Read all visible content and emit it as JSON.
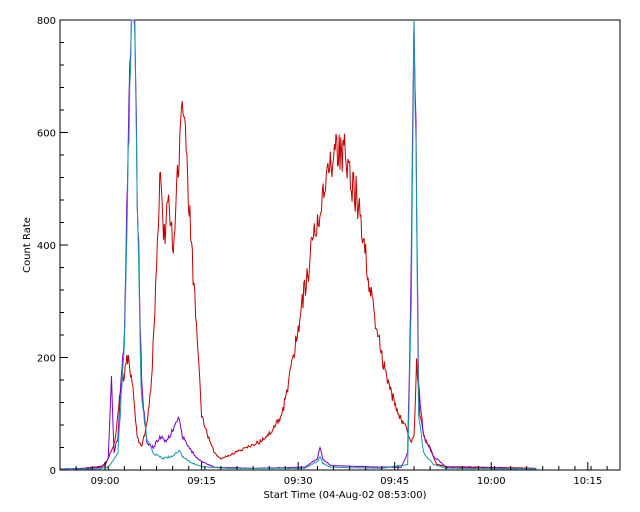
{
  "chart_data": {
    "type": "line",
    "title": "",
    "xlabel": "Start Time (04-Aug-02 08:53:00)",
    "ylabel": "Count Rate",
    "xlim_min": [
      0,
      87
    ],
    "ylim": [
      0,
      800
    ],
    "x_ticks": [
      {
        "t": 7,
        "label": "09:00"
      },
      {
        "t": 22,
        "label": "09:15"
      },
      {
        "t": 37,
        "label": "09:30"
      },
      {
        "t": 52,
        "label": "09:45"
      },
      {
        "t": 67,
        "label": "10:00"
      },
      {
        "t": 82,
        "label": "10:15"
      }
    ],
    "y_ticks": [
      0,
      200,
      400,
      600,
      800
    ],
    "grid": false,
    "series": [
      {
        "color": "#c00000",
        "points": [
          [
            4,
            4
          ],
          [
            5.5,
            5
          ],
          [
            7,
            8
          ],
          [
            8.5,
            50
          ],
          [
            9.5,
            150
          ],
          [
            10.5,
            200
          ],
          [
            11.2,
            160
          ],
          [
            12,
            60
          ],
          [
            12.6,
            40
          ],
          [
            13.5,
            80
          ],
          [
            14.2,
            150
          ],
          [
            15,
            350
          ],
          [
            15.5,
            510
          ],
          [
            16.2,
            420
          ],
          [
            17,
            480
          ],
          [
            17.6,
            380
          ],
          [
            18.5,
            560
          ],
          [
            19,
            630
          ],
          [
            19.6,
            560
          ],
          [
            20.3,
            420
          ],
          [
            21.2,
            250
          ],
          [
            22,
            100
          ],
          [
            23,
            60
          ],
          [
            24,
            30
          ],
          [
            25,
            20
          ],
          [
            27,
            30
          ],
          [
            29,
            40
          ],
          [
            31,
            50
          ],
          [
            33,
            70
          ],
          [
            34.5,
            100
          ],
          [
            35.5,
            150
          ],
          [
            36.5,
            220
          ],
          [
            37.5,
            290
          ],
          [
            38.5,
            350
          ],
          [
            39.5,
            420
          ],
          [
            40.5,
            470
          ],
          [
            41.5,
            520
          ],
          [
            42.5,
            540
          ],
          [
            43,
            580
          ],
          [
            43.5,
            550
          ],
          [
            44.2,
            590
          ],
          [
            45,
            520
          ],
          [
            46,
            490
          ],
          [
            47,
            420
          ],
          [
            48,
            340
          ],
          [
            49,
            270
          ],
          [
            50,
            200
          ],
          [
            51,
            150
          ],
          [
            52,
            120
          ],
          [
            53,
            90
          ],
          [
            54,
            70
          ],
          [
            54.5,
            50
          ],
          [
            55,
            60
          ],
          [
            55.4,
            190
          ],
          [
            55.9,
            100
          ],
          [
            56.5,
            60
          ],
          [
            57.5,
            40
          ],
          [
            58.5,
            10
          ],
          [
            60,
            6
          ],
          [
            65,
            5
          ],
          [
            70,
            4
          ],
          [
            74,
            3
          ]
        ]
      },
      {
        "color": "#7a00c8",
        "points": [
          [
            0,
            2
          ],
          [
            4,
            3
          ],
          [
            6.5,
            5
          ],
          [
            7.5,
            20
          ],
          [
            8,
            160
          ],
          [
            8.4,
            30
          ],
          [
            9,
            60
          ],
          [
            10,
            250
          ],
          [
            10.6,
            600
          ],
          [
            11.1,
            800
          ],
          [
            11.6,
            800
          ],
          [
            12,
            500
          ],
          [
            12.7,
            150
          ],
          [
            13.5,
            50
          ],
          [
            14.5,
            40
          ],
          [
            15.5,
            60
          ],
          [
            16.5,
            50
          ],
          [
            17.5,
            70
          ],
          [
            18.5,
            95
          ],
          [
            19,
            60
          ],
          [
            20,
            40
          ],
          [
            21,
            25
          ],
          [
            22,
            15
          ],
          [
            24,
            5
          ],
          [
            30,
            3
          ],
          [
            38,
            5
          ],
          [
            40,
            20
          ],
          [
            40.4,
            40
          ],
          [
            40.8,
            20
          ],
          [
            42,
            8
          ],
          [
            50,
            5
          ],
          [
            53,
            5
          ],
          [
            54,
            30
          ],
          [
            54.5,
            300
          ],
          [
            55,
            800
          ],
          [
            55.3,
            600
          ],
          [
            55.7,
            150
          ],
          [
            56.5,
            60
          ],
          [
            58,
            25
          ],
          [
            60,
            5
          ],
          [
            70,
            3
          ],
          [
            74,
            2
          ]
        ]
      },
      {
        "color": "#1a9aa8",
        "points": [
          [
            0,
            1
          ],
          [
            6,
            2
          ],
          [
            7.5,
            5
          ],
          [
            9,
            30
          ],
          [
            10,
            220
          ],
          [
            10.6,
            550
          ],
          [
            11.1,
            800
          ],
          [
            11.6,
            800
          ],
          [
            12,
            480
          ],
          [
            12.6,
            140
          ],
          [
            13.4,
            60
          ],
          [
            14.5,
            30
          ],
          [
            16,
            20
          ],
          [
            17.5,
            25
          ],
          [
            18.5,
            35
          ],
          [
            19,
            25
          ],
          [
            20.5,
            12
          ],
          [
            22,
            6
          ],
          [
            26,
            3
          ],
          [
            38,
            3
          ],
          [
            40,
            15
          ],
          [
            40.4,
            25
          ],
          [
            40.8,
            12
          ],
          [
            42,
            5
          ],
          [
            50,
            3
          ],
          [
            54,
            10
          ],
          [
            54.6,
            300
          ],
          [
            55,
            800
          ],
          [
            55.3,
            550
          ],
          [
            55.7,
            100
          ],
          [
            56.5,
            30
          ],
          [
            58,
            10
          ],
          [
            60,
            3
          ],
          [
            74,
            2
          ]
        ]
      }
    ]
  }
}
